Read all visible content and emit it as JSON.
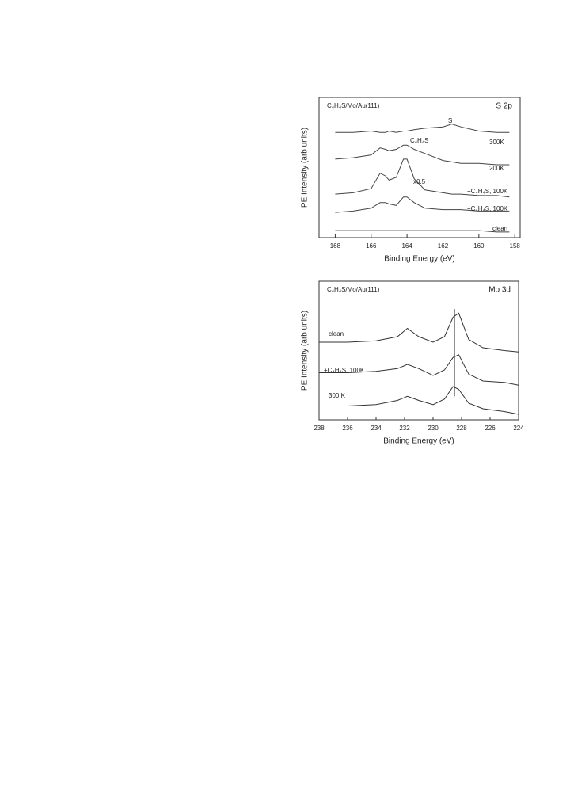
{
  "chart_data": [
    {
      "type": "line",
      "title": "C₄H₄S/Mo/Au(111)",
      "region": "S 2p",
      "x_label": "Binding Energy (eV)",
      "y_label": "PE Intensity (arb units)",
      "xlim": [
        168.9,
        157.7
      ],
      "xticks": [
        168,
        166,
        164,
        162,
        160,
        158
      ],
      "ylim": [
        0,
        100
      ],
      "annotations": [
        "S",
        "C₄H₄S",
        "x0.5"
      ],
      "x": [
        168,
        167,
        166,
        165.5,
        165.2,
        165,
        164.6,
        164.2,
        164,
        163.6,
        163,
        162,
        161.5,
        161,
        160,
        159,
        158.3
      ],
      "series": [
        {
          "name": "300K",
          "color": "#444",
          "values": [
            75,
            75,
            76,
            75,
            75,
            76,
            75,
            76,
            76,
            77,
            78,
            79,
            81,
            79,
            76,
            75,
            75
          ]
        },
        {
          "name": "200K",
          "color": "#444",
          "values": [
            56,
            57,
            59,
            64,
            63,
            62,
            63,
            66,
            66,
            63,
            60,
            55,
            54,
            53,
            53,
            52,
            52
          ]
        },
        {
          "name": "+C₄H₄S, 100K",
          "color": "#444",
          "values": [
            31,
            32,
            35,
            46,
            44,
            41,
            43,
            56,
            56,
            42,
            34,
            32,
            31,
            31,
            30,
            30,
            29
          ]
        },
        {
          "name": "+C₄H₄S, 100K",
          "color": "#444",
          "values": [
            18,
            19,
            21,
            25,
            25,
            24,
            23,
            29,
            29,
            25,
            21,
            20,
            20,
            20,
            19,
            19,
            19
          ]
        },
        {
          "name": "clean",
          "color": "#444",
          "values": [
            5,
            5,
            5,
            5,
            5,
            5,
            5,
            5,
            5,
            5,
            5,
            5,
            5,
            5,
            5,
            4,
            4
          ]
        }
      ]
    },
    {
      "type": "line",
      "title": "C₄H₄S/Mo/Au(111)",
      "region": "Mo 3d",
      "x_label": "Binding  Energy  (eV)",
      "y_label": "PE Intensity (arb units)",
      "xlim": [
        238,
        224
      ],
      "xticks": [
        238,
        236,
        234,
        232,
        230,
        228,
        226,
        224
      ],
      "ylim": [
        0,
        100
      ],
      "reference_line_x": 228.5,
      "x": [
        238,
        236,
        234,
        232.5,
        231.8,
        231,
        230,
        229.2,
        228.6,
        228.2,
        227.5,
        226.5,
        225,
        224
      ],
      "series": [
        {
          "name": "clean",
          "color": "#333",
          "values": [
            56,
            56,
            57,
            60,
            66,
            60,
            56,
            60,
            74,
            77,
            58,
            52,
            50,
            49
          ]
        },
        {
          "name": "+C₄H₄S, 100K",
          "color": "#333",
          "values": [
            34,
            34,
            35,
            37,
            40,
            37,
            32,
            36,
            45,
            47,
            33,
            28,
            27,
            25
          ]
        },
        {
          "name": "300 K",
          "color": "#333",
          "values": [
            10,
            10,
            11,
            14,
            17,
            14,
            11,
            15,
            24,
            22,
            12,
            8,
            6,
            4
          ]
        }
      ]
    }
  ]
}
